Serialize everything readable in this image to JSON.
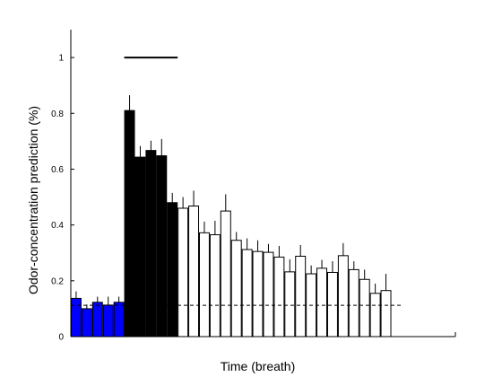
{
  "chart_data": {
    "type": "bar",
    "title": "",
    "xlabel": "Time (breath)",
    "ylabel": "Odor-concentration prediction (%)",
    "ylim": [
      0,
      1.1
    ],
    "yticks": [
      "0",
      "0.2",
      "0.4",
      "0.6",
      "0.8",
      "1"
    ],
    "xticks_visible": false,
    "grid": false,
    "legend": "none",
    "x_range": [
      0.5,
      36.5
    ],
    "colors": {
      "pre_odor": "#0000ff",
      "odor": "#000000",
      "post_odor": "#ffffff",
      "edge": "#000000"
    },
    "series": [
      {
        "group": "pre_odor",
        "x": [
          1,
          2,
          3,
          4,
          5
        ],
        "values": [
          0.137,
          0.1,
          0.123,
          0.113,
          0.123
        ],
        "errors": [
          0.025,
          0.015,
          0.02,
          0.03,
          0.02
        ]
      },
      {
        "group": "odor",
        "x": [
          6,
          7,
          8,
          9,
          10,
          11
        ],
        "values": [
          0.81,
          0.643,
          0.667,
          0.648,
          0.48,
          0.0
        ],
        "errors": [
          0.055,
          0.04,
          0.035,
          0.06,
          0.035,
          0.0
        ]
      },
      {
        "group": "post_odor",
        "x": [
          11,
          12,
          13,
          14,
          15,
          16,
          17,
          18,
          19,
          20,
          21,
          22,
          23,
          24,
          25,
          26,
          27,
          28,
          29,
          30,
          31,
          32
        ],
        "values": [
          0.46,
          0.468,
          0.372,
          0.365,
          0.45,
          0.345,
          0.312,
          0.305,
          0.302,
          0.285,
          0.232,
          0.288,
          0.225,
          0.245,
          0.23,
          0.29,
          0.24,
          0.205,
          0.155,
          0.165,
          0.0,
          0.0
        ],
        "errors": [
          0.04,
          0.055,
          0.04,
          0.05,
          0.06,
          0.03,
          0.04,
          0.04,
          0.03,
          0.04,
          0.045,
          0.04,
          0.03,
          0.03,
          0.04,
          0.045,
          0.03,
          0.035,
          0.035,
          0.06,
          0.0,
          0.0
        ]
      }
    ],
    "baseline": {
      "y": 0.112,
      "x_start": 0.5,
      "x_end": 31.5,
      "style": "dashed"
    },
    "stimulus_bar": {
      "y": 1.0,
      "x_start": 5.5,
      "x_end": 10.5
    }
  }
}
